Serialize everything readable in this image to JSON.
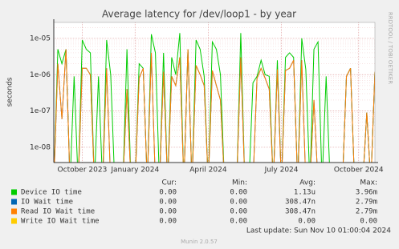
{
  "chart_data": {
    "type": "line",
    "title": "Average latency for /dev/loop1 - by year",
    "y_label": "seconds",
    "watermark": "RRDTOOL / TOBI OETIKER",
    "log_scale": true,
    "grid": true,
    "ylim": [
      3.8e-09,
      2.75e-05
    ],
    "yticks": [
      {
        "value": 1e-08,
        "label": "1e-08"
      },
      {
        "value": 1e-07,
        "label": "1e-07"
      },
      {
        "value": 1e-06,
        "label": "1e-06"
      },
      {
        "value": 1e-05,
        "label": "1e-05"
      }
    ],
    "categories": [
      null,
      null,
      null,
      null,
      null,
      null,
      null,
      "October 2023",
      null,
      null,
      null,
      null,
      null,
      null,
      null,
      null,
      null,
      null,
      null,
      null,
      "January 2024",
      null,
      null,
      null,
      null,
      null,
      null,
      null,
      null,
      null,
      null,
      null,
      null,
      null,
      null,
      null,
      null,
      null,
      "April 2024",
      null,
      null,
      null,
      null,
      null,
      null,
      null,
      null,
      null,
      null,
      null,
      null,
      null,
      null,
      null,
      null,
      null,
      "July 2024",
      null,
      null,
      null,
      null,
      null,
      null,
      null,
      null,
      null,
      null,
      null,
      null,
      null,
      null,
      null,
      null,
      null,
      null,
      "October 2024",
      null,
      null,
      null,
      null
    ],
    "series": [
      {
        "name": "Device IO time",
        "color": "#00cc00",
        "values": [
          1e-09,
          5e-06,
          2e-06,
          5e-06,
          1e-09,
          9e-07,
          1e-09,
          9e-06,
          5e-06,
          4e-06,
          1e-09,
          9e-07,
          1e-09,
          9e-06,
          1e-06,
          1e-09,
          1e-09,
          1e-09,
          5e-06,
          1e-09,
          1e-09,
          2e-06,
          1.5e-06,
          1e-09,
          1.3e-05,
          4e-06,
          1e-09,
          4e-06,
          1e-09,
          3e-06,
          1e-06,
          1.4e-05,
          1e-09,
          5e-06,
          1e-09,
          9e-06,
          5e-06,
          9e-07,
          1e-09,
          8e-06,
          5e-06,
          1e-06,
          1e-09,
          1e-09,
          1e-09,
          1e-09,
          1.4e-05,
          1e-09,
          1e-09,
          6e-07,
          9e-07,
          2.5e-06,
          1e-06,
          9e-07,
          1e-09,
          2.5e-06,
          1e-09,
          3e-06,
          4e-06,
          3e-06,
          1e-09,
          1e-05,
          1.4e-06,
          1e-09,
          5e-06,
          8e-06,
          1e-09,
          9e-07,
          1e-09,
          1e-09,
          1e-09,
          1e-09,
          9e-07,
          1.5e-06,
          1e-09,
          1e-09,
          1e-09,
          9e-08,
          1e-09,
          1.2e-06
        ]
      },
      {
        "name": "IO Wait time",
        "color": "#0066b3",
        "values": [
          1e-09,
          2e-06,
          6e-08,
          5e-06,
          1e-09,
          1e-09,
          1e-09,
          1.5e-06,
          1.5e-06,
          1e-06,
          1e-09,
          1e-09,
          1e-09,
          1.5e-06,
          1e-09,
          1e-09,
          1e-09,
          1e-09,
          4e-07,
          1e-09,
          1e-09,
          8e-07,
          1.5e-06,
          1e-09,
          4e-06,
          1e-09,
          1e-09,
          1.2e-06,
          1e-09,
          9e-07,
          5e-07,
          3e-06,
          1e-09,
          5e-06,
          1e-09,
          1.8e-06,
          1e-06,
          5e-07,
          1e-09,
          1.3e-06,
          5e-07,
          2e-07,
          1e-09,
          1e-09,
          1e-09,
          1e-09,
          3e-06,
          1e-09,
          1e-09,
          1e-09,
          8e-07,
          1.5e-06,
          8e-07,
          4e-07,
          1e-09,
          1.4e-06,
          1e-09,
          1.3e-06,
          1.5e-06,
          2.5e-06,
          1e-09,
          2.5e-06,
          1e-09,
          1e-09,
          2e-07,
          1e-09,
          1e-09,
          1e-09,
          1e-09,
          1e-09,
          1e-09,
          1e-09,
          9e-07,
          1.5e-06,
          1e-09,
          1e-09,
          1e-09,
          9e-08,
          1e-09,
          1.2e-06
        ]
      },
      {
        "name": "Read IO Wait time",
        "color": "#ff8000",
        "values": [
          1e-09,
          2e-06,
          6e-08,
          5e-06,
          1e-09,
          1e-09,
          1e-09,
          1.5e-06,
          1.5e-06,
          1e-06,
          1e-09,
          1e-09,
          1e-09,
          1.5e-06,
          1e-09,
          1e-09,
          1e-09,
          1e-09,
          4e-07,
          1e-09,
          1e-09,
          8e-07,
          1.5e-06,
          1e-09,
          4e-06,
          1e-09,
          1e-09,
          1.2e-06,
          1e-09,
          9e-07,
          5e-07,
          3e-06,
          1e-09,
          5e-06,
          1e-09,
          1.8e-06,
          1e-06,
          5e-07,
          1e-09,
          1.3e-06,
          5e-07,
          2e-07,
          1e-09,
          1e-09,
          1e-09,
          1e-09,
          3e-06,
          1e-09,
          1e-09,
          1e-09,
          8e-07,
          1.5e-06,
          8e-07,
          4e-07,
          1e-09,
          1.4e-06,
          1e-09,
          1.3e-06,
          1.5e-06,
          2.5e-06,
          1e-09,
          2.5e-06,
          1e-09,
          1e-09,
          2e-07,
          1e-09,
          1e-09,
          1e-09,
          1e-09,
          1e-09,
          1e-09,
          1e-09,
          9e-07,
          1.5e-06,
          1e-09,
          1e-09,
          1e-09,
          9e-08,
          1e-09,
          1.2e-06
        ]
      },
      {
        "name": "Write IO Wait time",
        "color": "#ffcc00"
      }
    ],
    "legend_table": {
      "headers": [
        "Cur:",
        "Min:",
        "Avg:",
        "Max:"
      ],
      "rows": [
        [
          "0.00",
          "0.00",
          "1.13u",
          "3.96m"
        ],
        [
          "0.00",
          "0.00",
          "308.47n",
          "2.79m"
        ],
        [
          "0.00",
          "0.00",
          "308.47n",
          "2.79m"
        ],
        [
          "0.00",
          "0.00",
          "0.00",
          "0.00"
        ]
      ]
    },
    "last_update": "Last update: Sun Nov 10 01:00:04 2024",
    "footer": "Munin 2.0.57"
  }
}
